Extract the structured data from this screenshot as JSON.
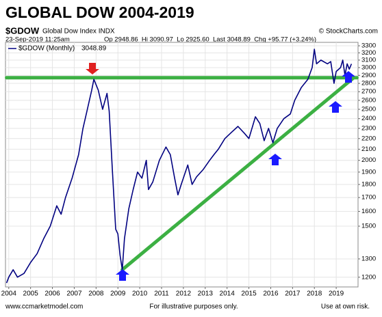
{
  "chart_data": {
    "type": "line",
    "title": "GLOBAL DOW 2004-2019",
    "symbol": "$GDOW",
    "symbol_desc": "Global Dow Index INDX",
    "source": "© StockCharts.com",
    "timestamp": "23-Sep-2019 11:25am",
    "quote": "Op 2948.86  Hi 3090.97  Lo 2925.60  Last 3048.89  Chg +95.77 (+3.24%)",
    "legend_value": "3048.89",
    "footer": [
      "www.ccmarketmodel.com",
      "For illustrative purposes only.",
      "Use at own risk."
    ],
    "log_scale": true,
    "grid": true,
    "x": [
      2003.9,
      2004.0,
      2004.2,
      2004.4,
      2004.7,
      2005.0,
      2005.3,
      2005.6,
      2005.9,
      2006.2,
      2006.4,
      2006.6,
      2006.9,
      2007.2,
      2007.4,
      2007.6,
      2007.8,
      2007.9,
      2008.1,
      2008.3,
      2008.5,
      2008.6,
      2008.75,
      2008.9,
      2009.0,
      2009.1,
      2009.2,
      2009.3,
      2009.5,
      2009.7,
      2009.9,
      2010.1,
      2010.3,
      2010.4,
      2010.6,
      2010.9,
      2011.2,
      2011.4,
      2011.6,
      2011.75,
      2011.9,
      2012.2,
      2012.4,
      2012.6,
      2012.9,
      2013.2,
      2013.4,
      2013.6,
      2013.9,
      2014.2,
      2014.5,
      2014.8,
      2015.0,
      2015.3,
      2015.5,
      2015.7,
      2015.9,
      2016.1,
      2016.3,
      2016.6,
      2016.9,
      2017.1,
      2017.4,
      2017.7,
      2017.9,
      2018.0,
      2018.1,
      2018.3,
      2018.6,
      2018.75,
      2018.9,
      2019.0,
      2019.2,
      2019.3,
      2019.4,
      2019.5,
      2019.6,
      2019.7
    ],
    "series": [
      {
        "name": "$GDOW (Monthly)",
        "color": "#000080",
        "values": [
          1170,
          1200,
          1240,
          1200,
          1220,
          1280,
          1330,
          1420,
          1500,
          1640,
          1580,
          1700,
          1850,
          2050,
          2300,
          2500,
          2720,
          2850,
          2720,
          2500,
          2680,
          2480,
          1900,
          1480,
          1450,
          1320,
          1240,
          1420,
          1620,
          1760,
          1900,
          1850,
          2000,
          1760,
          1820,
          2000,
          2120,
          2050,
          1850,
          1720,
          1800,
          1960,
          1800,
          1860,
          1920,
          2000,
          2050,
          2100,
          2200,
          2260,
          2320,
          2250,
          2200,
          2420,
          2350,
          2180,
          2300,
          2160,
          2300,
          2400,
          2450,
          2600,
          2750,
          2850,
          3000,
          3250,
          3050,
          3100,
          3050,
          3080,
          2800,
          2950,
          3000,
          3100,
          2900,
          3050,
          2980,
          3049
        ]
      }
    ],
    "reference_lines": [
      {
        "color": "#3cb043",
        "x": [
          2003.9,
          2019.95
        ],
        "values": [
          2870,
          2870
        ]
      },
      {
        "color": "#3cb043",
        "x": [
          2009.2,
          2019.8
        ],
        "values": [
          1240,
          2870
        ]
      }
    ],
    "xlim": [
      2003.85,
      2020.0
    ],
    "xticks": [
      2004,
      2005,
      2006,
      2007,
      2008,
      2009,
      2010,
      2011,
      2012,
      2013,
      2014,
      2015,
      2016,
      2017,
      2018,
      2019
    ],
    "ylim": [
      1150,
      3350
    ],
    "yticks": [
      1200,
      1300,
      1500,
      1600,
      1700,
      1800,
      1900,
      2000,
      2100,
      2200,
      2300,
      2400,
      2500,
      2600,
      2700,
      2800,
      2900,
      3000,
      3100,
      3200,
      3300
    ]
  }
}
